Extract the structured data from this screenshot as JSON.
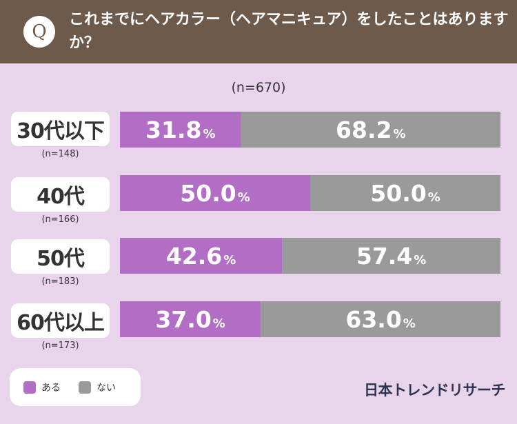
{
  "header": {
    "badge": "Q",
    "question": "これまでにヘアカラー（ヘアマニキュア）をしたことはありますか？"
  },
  "total_n": "(n=670)",
  "chart_data": {
    "type": "bar",
    "orientation": "horizontal",
    "stacked": "percent",
    "categories": [
      "30代以下",
      "40代",
      "50代",
      "60代以上"
    ],
    "category_n": [
      "(n=148)",
      "(n=166)",
      "(n=183)",
      "(n=173)"
    ],
    "series": [
      {
        "name": "ある",
        "values": [
          31.8,
          50.0,
          42.6,
          37.0
        ],
        "color": "#b16ec4"
      },
      {
        "name": "ない",
        "values": [
          68.2,
          50.0,
          57.4,
          63.0
        ],
        "color": "#9a9a9a"
      }
    ],
    "value_labels": [
      [
        "31.8",
        "50.0",
        "42.6",
        "37.0"
      ],
      [
        "68.2",
        "50.0",
        "57.4",
        "63.0"
      ]
    ],
    "unit": "%",
    "xlim": [
      0,
      100
    ],
    "grid": false,
    "legend_position": "bottom-left"
  },
  "legend": [
    {
      "label": "ある",
      "color": "#b16ec4"
    },
    {
      "label": "ない",
      "color": "#9a9a9a"
    }
  ],
  "brand": "日本トレンドリサーチ"
}
